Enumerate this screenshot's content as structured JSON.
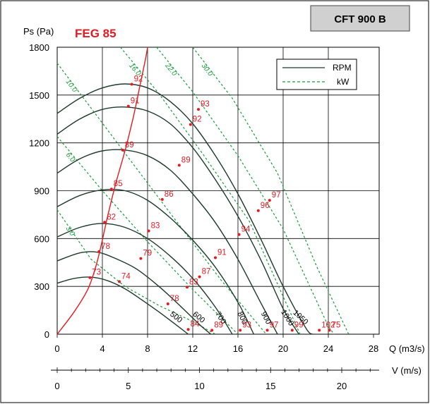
{
  "chart_data": {
    "type": "line",
    "model_label": "FEG 85",
    "title": "CFT 900 B",
    "ylabel": "Ps (Pa)",
    "xlabel": "Q (m3/s)",
    "x2label": "V (m/s)",
    "xlim": [
      0,
      27
    ],
    "ylim": [
      0,
      1800
    ],
    "xticks": [
      "0",
      "4",
      "8",
      "12",
      "16",
      "20",
      "24",
      "28"
    ],
    "yticks": [
      "0",
      "300",
      "600",
      "900",
      "1200",
      "1500",
      "1800"
    ],
    "vticks": [
      "0",
      "5",
      "10",
      "15",
      "20"
    ],
    "legend": [
      "RPM",
      "kW"
    ],
    "colors": {
      "rpm": "#1d3a2b",
      "kw": "#1a9b3a",
      "efficiency": "#e21b23",
      "grid": "#000000"
    },
    "rpm_curves": [
      {
        "name": "500",
        "points": [
          [
            0,
            320
          ],
          [
            1.5,
            350
          ],
          [
            3,
            358
          ],
          [
            4.5,
            335
          ],
          [
            6,
            285
          ],
          [
            7.5,
            215
          ],
          [
            9,
            140
          ],
          [
            10.5,
            60
          ],
          [
            11.6,
            0
          ]
        ]
      },
      {
        "name": "600",
        "points": [
          [
            0,
            460
          ],
          [
            2,
            510
          ],
          [
            3.5,
            515
          ],
          [
            5,
            480
          ],
          [
            7,
            410
          ],
          [
            9,
            300
          ],
          [
            11,
            170
          ],
          [
            12.6,
            60
          ],
          [
            13.6,
            0
          ]
        ]
      },
      {
        "name": "700",
        "points": [
          [
            0,
            610
          ],
          [
            2,
            670
          ],
          [
            4,
            695
          ],
          [
            6,
            670
          ],
          [
            8,
            600
          ],
          [
            10,
            490
          ],
          [
            12,
            350
          ],
          [
            14,
            170
          ],
          [
            15.5,
            0
          ]
        ]
      },
      {
        "name": "800",
        "points": [
          [
            0,
            800
          ],
          [
            2,
            870
          ],
          [
            4,
            905
          ],
          [
            6,
            900
          ],
          [
            8,
            840
          ],
          [
            10,
            730
          ],
          [
            12,
            590
          ],
          [
            14,
            420
          ],
          [
            16,
            200
          ],
          [
            17.4,
            0
          ]
        ]
      },
      {
        "name": "900",
        "points": [
          [
            0,
            1010
          ],
          [
            2,
            1100
          ],
          [
            4,
            1150
          ],
          [
            6,
            1155
          ],
          [
            8,
            1120
          ],
          [
            10,
            1030
          ],
          [
            12,
            880
          ],
          [
            14,
            700
          ],
          [
            16,
            470
          ],
          [
            18,
            200
          ],
          [
            19.5,
            0
          ]
        ]
      },
      {
        "name": "1000",
        "points": [
          [
            0,
            1255
          ],
          [
            2,
            1350
          ],
          [
            4,
            1410
          ],
          [
            6,
            1425
          ],
          [
            8,
            1400
          ],
          [
            10,
            1320
          ],
          [
            12,
            1170
          ],
          [
            14,
            970
          ],
          [
            16,
            740
          ],
          [
            18,
            470
          ],
          [
            20,
            160
          ],
          [
            21.4,
            0
          ]
        ]
      },
      {
        "name": "1050",
        "points": [
          [
            0,
            1385
          ],
          [
            2,
            1480
          ],
          [
            4,
            1545
          ],
          [
            6,
            1570
          ],
          [
            8,
            1545
          ],
          [
            10,
            1460
          ],
          [
            12,
            1320
          ],
          [
            14,
            1120
          ],
          [
            16,
            880
          ],
          [
            18,
            600
          ],
          [
            20,
            300
          ],
          [
            22,
            40
          ],
          [
            22.6,
            0
          ]
        ]
      }
    ],
    "rpm_labels": [
      "500",
      "600",
      "700",
      "800",
      "900",
      "1000",
      "1050"
    ],
    "kw_curves": [
      {
        "name": "3.0",
        "points": [
          [
            0,
            780
          ],
          [
            3,
            470
          ],
          [
            6,
            300
          ],
          [
            9,
            180
          ],
          [
            12,
            80
          ],
          [
            14,
            0
          ]
        ]
      },
      {
        "name": "6.0",
        "points": [
          [
            0,
            1240
          ],
          [
            4,
            900
          ],
          [
            8,
            580
          ],
          [
            12,
            280
          ],
          [
            16,
            0
          ]
        ]
      },
      {
        "name": "10.0",
        "points": [
          [
            0,
            1700
          ],
          [
            5,
            1230
          ],
          [
            10,
            760
          ],
          [
            14.5,
            340
          ],
          [
            18.5,
            0
          ]
        ]
      },
      {
        "name": "16.0",
        "points": [
          [
            5.6,
            1800
          ],
          [
            9,
            1510
          ],
          [
            13,
            1120
          ],
          [
            17,
            710
          ],
          [
            21.5,
            0
          ]
        ]
      },
      {
        "name": "22.0",
        "points": [
          [
            8.8,
            1800
          ],
          [
            12,
            1520
          ],
          [
            16,
            1120
          ],
          [
            20,
            660
          ],
          [
            24,
            50
          ],
          [
            24.5,
            0
          ]
        ]
      },
      {
        "name": "30.0",
        "points": [
          [
            12,
            1800
          ],
          [
            15.5,
            1480
          ],
          [
            19.5,
            1010
          ],
          [
            23,
            420
          ],
          [
            25.8,
            0
          ]
        ]
      }
    ],
    "efficiency_curve": [
      [
        0,
        0
      ],
      [
        1.5,
        140
      ],
      [
        2.7,
        280
      ],
      [
        3.4,
        420
      ],
      [
        3.9,
        560
      ],
      [
        4.5,
        750
      ],
      [
        5.2,
        950
      ],
      [
        6,
        1150
      ],
      [
        6.7,
        1350
      ],
      [
        7.3,
        1550
      ],
      [
        7.8,
        1720
      ],
      [
        8,
        1800
      ]
    ],
    "efficiency_points": [
      {
        "label": "73",
        "x": 2.9,
        "y": 355
      },
      {
        "label": "74",
        "x": 5.5,
        "y": 330
      },
      {
        "label": "78",
        "x": 3.7,
        "y": 518
      },
      {
        "label": "79",
        "x": 7.4,
        "y": 475
      },
      {
        "label": "82",
        "x": 4.2,
        "y": 702
      },
      {
        "label": "83",
        "x": 8.1,
        "y": 648
      },
      {
        "label": "85",
        "x": 4.8,
        "y": 910
      },
      {
        "label": "86",
        "x": 9.3,
        "y": 845
      },
      {
        "label": "89",
        "x": 5.8,
        "y": 1155
      },
      {
        "label": "89",
        "x": 10.8,
        "y": 1060
      },
      {
        "label": "91",
        "x": 6.3,
        "y": 1430
      },
      {
        "label": "92",
        "x": 6.6,
        "y": 1568
      },
      {
        "label": "92",
        "x": 11.8,
        "y": 1315
      },
      {
        "label": "93",
        "x": 12.5,
        "y": 1410
      },
      {
        "label": "94",
        "x": 16.1,
        "y": 625
      },
      {
        "label": "91",
        "x": 14.0,
        "y": 480
      },
      {
        "label": "87",
        "x": 12.6,
        "y": 360
      },
      {
        "label": "83",
        "x": 11.5,
        "y": 295
      },
      {
        "label": "78",
        "x": 9.8,
        "y": 190
      },
      {
        "label": "84",
        "x": 11.6,
        "y": 30
      },
      {
        "label": "89",
        "x": 13.7,
        "y": 25
      },
      {
        "label": "93",
        "x": 16.2,
        "y": 25
      },
      {
        "label": "97",
        "x": 18.6,
        "y": 25
      },
      {
        "label": "99",
        "x": 20.8,
        "y": 25
      },
      {
        "label": "102",
        "x": 23.2,
        "y": 25
      },
      {
        "label": "75",
        "x": 24.1,
        "y": 25
      },
      {
        "label": "96",
        "x": 17.8,
        "y": 775
      },
      {
        "label": "97",
        "x": 18.8,
        "y": 840
      }
    ],
    "grid": true,
    "legend_position": "top-right"
  }
}
